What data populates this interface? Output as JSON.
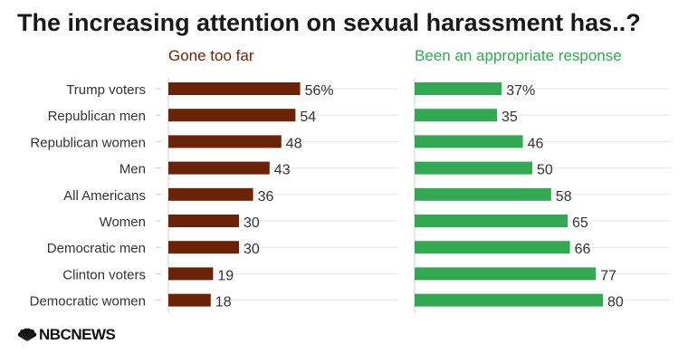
{
  "title": "The increasing attention on sexual harassment has..?",
  "logo_text": "NBCNEWS",
  "colors": {
    "left": "#6b2308",
    "right": "#33a852"
  },
  "chart_data": {
    "type": "bar",
    "orientation": "horizontal",
    "title": "The increasing attention on sexual harassment has..?",
    "categories": [
      "Trump voters",
      "Republican men",
      "Republican women",
      "Men",
      "All Americans",
      "Women",
      "Democratic men",
      "Clinton voters",
      "Democratic women"
    ],
    "value_labels_suffix_first": "%",
    "series": [
      {
        "name": "Gone too far",
        "color": "#6b2308",
        "values": [
          56,
          54,
          48,
          43,
          36,
          30,
          30,
          19,
          18
        ]
      },
      {
        "name": "Been an appropriate response",
        "color": "#33a852",
        "values": [
          37,
          35,
          46,
          50,
          58,
          65,
          66,
          77,
          80
        ]
      }
    ],
    "xlim": [
      0,
      100
    ],
    "grid": true,
    "legend": "panel titles"
  }
}
